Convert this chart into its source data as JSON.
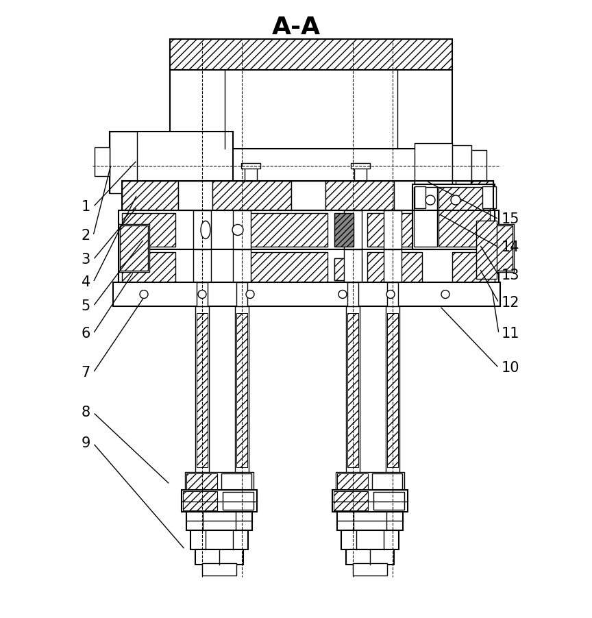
{
  "title": "A-A",
  "title_fontsize": 26,
  "title_fontweight": "bold",
  "bg_color": "#ffffff",
  "line_color": "#000000",
  "label_fontsize": 15,
  "annotations_left": [
    [
      "1",
      118,
      600
    ],
    [
      "2",
      118,
      558
    ],
    [
      "3",
      118,
      523
    ],
    [
      "4",
      118,
      490
    ],
    [
      "5",
      118,
      455
    ],
    [
      "6",
      118,
      415
    ],
    [
      "7",
      118,
      358
    ],
    [
      "8",
      118,
      300
    ],
    [
      "9",
      118,
      255
    ]
  ],
  "annotations_right": [
    [
      "15",
      746,
      582
    ],
    [
      "14",
      746,
      541
    ],
    [
      "13",
      746,
      500
    ],
    [
      "12",
      746,
      460
    ],
    [
      "11",
      746,
      415
    ],
    [
      "10",
      746,
      365
    ]
  ]
}
